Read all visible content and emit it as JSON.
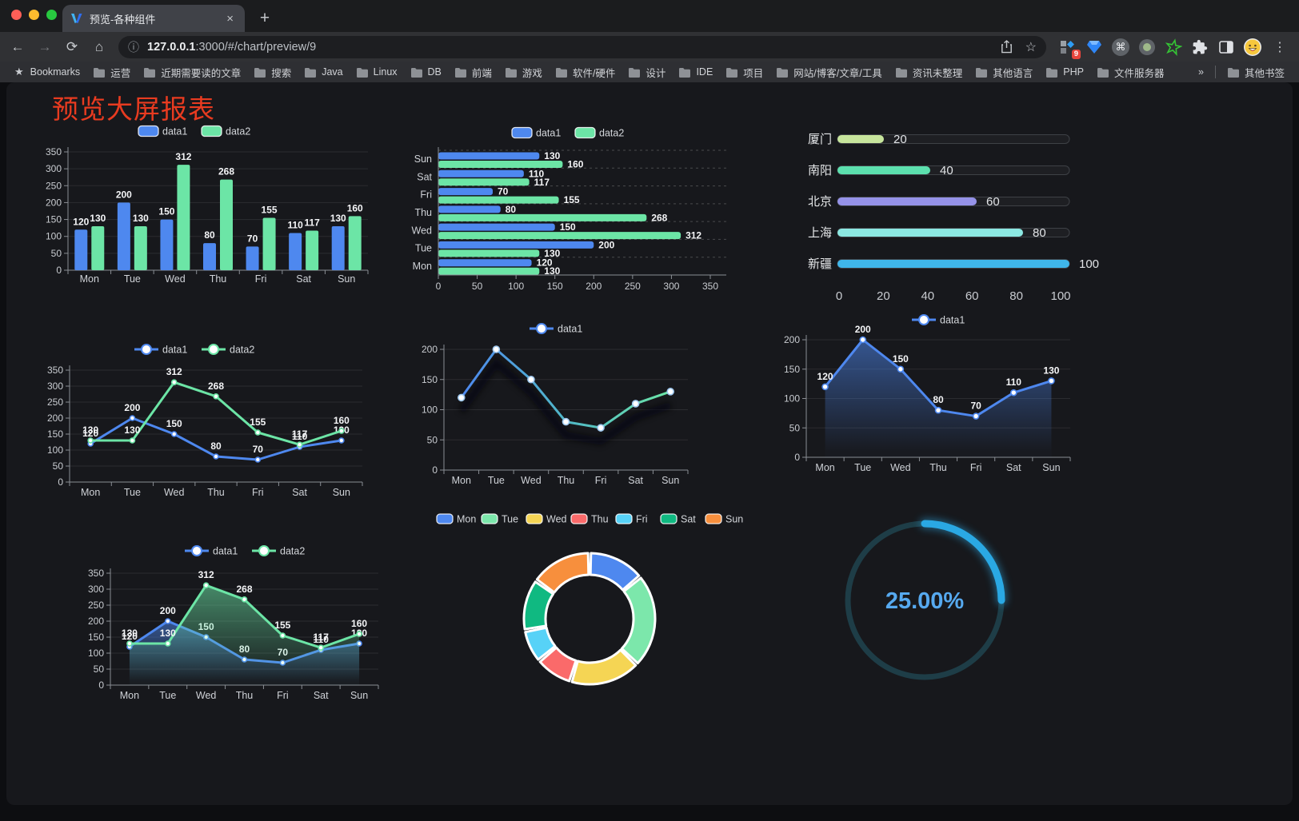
{
  "browser": {
    "tab_title": "预览-各种组件",
    "url_host": "127.0.0.1",
    "url_rest": ":3000/#/chart/preview/9",
    "bookmarks_label": "Bookmarks",
    "bookmarks": [
      "运营",
      "近期需要读的文章",
      "搜索",
      "Java",
      "Linux",
      "DB",
      "前端",
      "游戏",
      "软件/硬件",
      "设计",
      "IDE",
      "项目",
      "网站/博客/文章/工具",
      "资讯未整理",
      "其他语言",
      "PHP",
      "文件服务器"
    ],
    "bookmarks_overflow": "»",
    "other_bookmarks": "其他书签",
    "extension_badge": "9",
    "new_tab_label": "+",
    "tab_close_label": "×"
  },
  "page": {
    "title": "预览大屏报表",
    "title_color": "#e83b20"
  },
  "colors": {
    "data1_blue": "#4e88ef",
    "data2_green": "#6ce5a6",
    "grid": "rgba(255,255,255,0.09)",
    "axis": "#8a8e94",
    "tick_label": "#c9ccd1",
    "value_label": "#f4f5f7",
    "legend_label": "#d4d7db"
  },
  "chart_data": [
    {
      "id": "bar-vertical",
      "type": "bar",
      "categories": [
        "Mon",
        "Tue",
        "Wed",
        "Thu",
        "Fri",
        "Sat",
        "Sun"
      ],
      "series": [
        {
          "name": "data1",
          "color": "#4e88ef",
          "values": [
            120,
            200,
            150,
            80,
            70,
            110,
            130
          ]
        },
        {
          "name": "data2",
          "color": "#6ce5a6",
          "values": [
            130,
            130,
            312,
            268,
            155,
            117,
            160
          ]
        }
      ],
      "ylim": [
        0,
        350
      ],
      "ytick": 50,
      "legend_position": "top",
      "grid": true
    },
    {
      "id": "bar-horizontal",
      "type": "bar",
      "orientation": "horizontal",
      "categories": [
        "Mon",
        "Tue",
        "Wed",
        "Thu",
        "Fri",
        "Sat",
        "Sun"
      ],
      "series": [
        {
          "name": "data1",
          "color": "#4e88ef",
          "values": [
            120,
            200,
            150,
            80,
            70,
            110,
            130
          ]
        },
        {
          "name": "data2",
          "color": "#6ce5a6",
          "values": [
            130,
            130,
            312,
            268,
            155,
            117,
            160
          ]
        }
      ],
      "xlim": [
        0,
        350
      ],
      "xticks": [
        0,
        50,
        100,
        150,
        200,
        250,
        300,
        350
      ],
      "legend_position": "top"
    },
    {
      "id": "progress-bars",
      "type": "bar",
      "orientation": "horizontal-progress",
      "categories": [
        "厦门",
        "南阳",
        "北京",
        "上海",
        "新疆"
      ],
      "values": [
        20,
        40,
        60,
        80,
        100
      ],
      "bar_colors": [
        "#c7e59c",
        "#5ce0ae",
        "#9592e8",
        "#8ce8e2",
        "#3fb6ea"
      ],
      "xlim": [
        0,
        100
      ],
      "xticks": [
        0,
        20,
        40,
        60,
        80,
        100
      ]
    },
    {
      "id": "line-basic",
      "type": "line",
      "categories": [
        "Mon",
        "Tue",
        "Wed",
        "Thu",
        "Fri",
        "Sat",
        "Sun"
      ],
      "series": [
        {
          "name": "data1",
          "color": "#4e88ef",
          "values": [
            120,
            200,
            150,
            80,
            70,
            110,
            130
          ]
        },
        {
          "name": "data2",
          "color": "#6ce5a6",
          "values": [
            130,
            130,
            312,
            268,
            155,
            117,
            160
          ]
        }
      ],
      "ylim": [
        0,
        350
      ],
      "ytick": 50,
      "show_labels": true,
      "legend_position": "top"
    },
    {
      "id": "line-gradient",
      "type": "line",
      "categories": [
        "Mon",
        "Tue",
        "Wed",
        "Thu",
        "Fri",
        "Sat",
        "Sun"
      ],
      "series": [
        {
          "name": "data1",
          "gradient": [
            "#4e88ef",
            "#50b8c8",
            "#6ce5a6"
          ],
          "values": [
            120,
            200,
            150,
            80,
            70,
            110,
            130
          ]
        }
      ],
      "ylim": [
        0,
        200
      ],
      "ytick": 50,
      "show_labels": false,
      "shadow": true,
      "legend_position": "top"
    },
    {
      "id": "line-area-blue",
      "type": "area",
      "categories": [
        "Mon",
        "Tue",
        "Wed",
        "Thu",
        "Fri",
        "Sat",
        "Sun"
      ],
      "series": [
        {
          "name": "data1",
          "color": "#4e88ef",
          "values": [
            120,
            200,
            150,
            80,
            70,
            110,
            130
          ],
          "area": true
        }
      ],
      "ylim": [
        0,
        200
      ],
      "ytick": 50,
      "show_labels": true,
      "legend_position": "top"
    },
    {
      "id": "line-area-double",
      "type": "area",
      "categories": [
        "Mon",
        "Tue",
        "Wed",
        "Thu",
        "Fri",
        "Sat",
        "Sun"
      ],
      "series": [
        {
          "name": "data1",
          "color": "#4e88ef",
          "values": [
            120,
            200,
            150,
            80,
            70,
            110,
            130
          ],
          "area": true
        },
        {
          "name": "data2",
          "color": "#6ce5a6",
          "values": [
            130,
            130,
            312,
            268,
            155,
            117,
            160
          ],
          "area": true
        }
      ],
      "ylim": [
        0,
        350
      ],
      "ytick": 50,
      "show_labels": true,
      "legend_position": "top"
    },
    {
      "id": "donut",
      "type": "pie",
      "categories": [
        "Mon",
        "Tue",
        "Wed",
        "Thu",
        "Fri",
        "Sat",
        "Sun"
      ],
      "values": [
        120,
        200,
        150,
        80,
        70,
        110,
        130
      ],
      "slice_colors": [
        "#4e88ef",
        "#7ce7ab",
        "#f5d554",
        "#fa6a6a",
        "#57d2f7",
        "#10b981",
        "#f78f3d"
      ],
      "inner_radius_ratio": 0.67,
      "legend_position": "top"
    },
    {
      "id": "gauge",
      "type": "gauge",
      "value": 25,
      "label": "25.00%",
      "arc_color": "#2aa8e3",
      "track_color": "#1e3d47",
      "text_color": "#56a9ef"
    }
  ]
}
